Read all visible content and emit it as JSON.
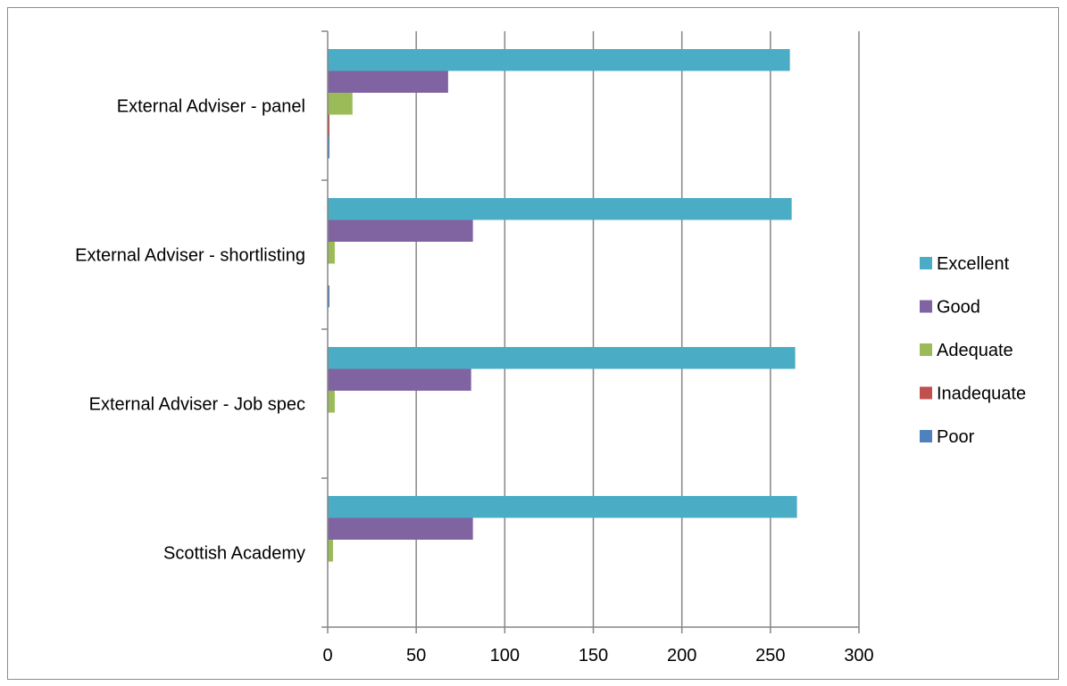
{
  "chart_data": {
    "type": "bar",
    "orientation": "horizontal",
    "categories": [
      "External Adviser - panel",
      "External Adviser - shortlisting",
      "External Adviser - Job spec",
      "Scottish Academy"
    ],
    "series": [
      {
        "name": "Excellent",
        "color": "#4BACC6",
        "values": [
          261,
          262,
          264,
          265
        ]
      },
      {
        "name": "Good",
        "color": "#8064A2",
        "values": [
          68,
          82,
          81,
          82
        ]
      },
      {
        "name": "Adequate",
        "color": "#9BBB59",
        "values": [
          14,
          4,
          4,
          3
        ]
      },
      {
        "name": "Inadequate",
        "color": "#C0504D",
        "values": [
          1,
          0,
          0,
          0
        ]
      },
      {
        "name": "Poor",
        "color": "#4F81BD",
        "values": [
          1,
          1,
          0,
          0
        ]
      }
    ],
    "xlim": [
      0,
      300
    ],
    "x_ticks": [
      0,
      50,
      100,
      150,
      200,
      250,
      300
    ],
    "grid": "vertical major gridlines",
    "legend_position": "right",
    "title": "",
    "xlabel": "",
    "ylabel": ""
  }
}
